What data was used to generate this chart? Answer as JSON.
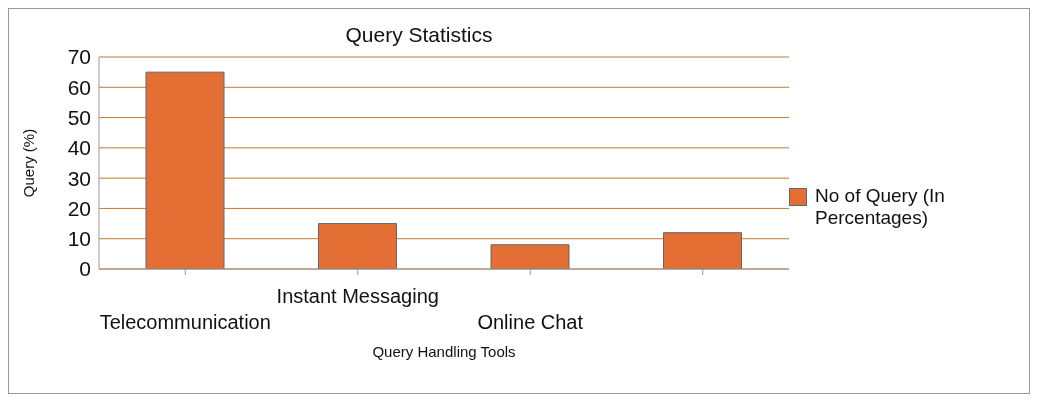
{
  "chart_data": {
    "type": "bar",
    "title": "Query Statistics",
    "xlabel": "Query Handling Tools",
    "ylabel": "Query (%)",
    "categories": [
      "Telecommunication",
      "Instant Messaging",
      "Online Chat",
      null
    ],
    "series": [
      {
        "name": "No of Query (In Percentages)",
        "color": "#e36f35",
        "values": [
          65,
          15,
          8,
          12
        ]
      }
    ],
    "ylim": [
      0,
      70
    ],
    "yticks": [
      0,
      10,
      20,
      30,
      40,
      50,
      60,
      70
    ],
    "grid": "y",
    "legend": "right"
  }
}
